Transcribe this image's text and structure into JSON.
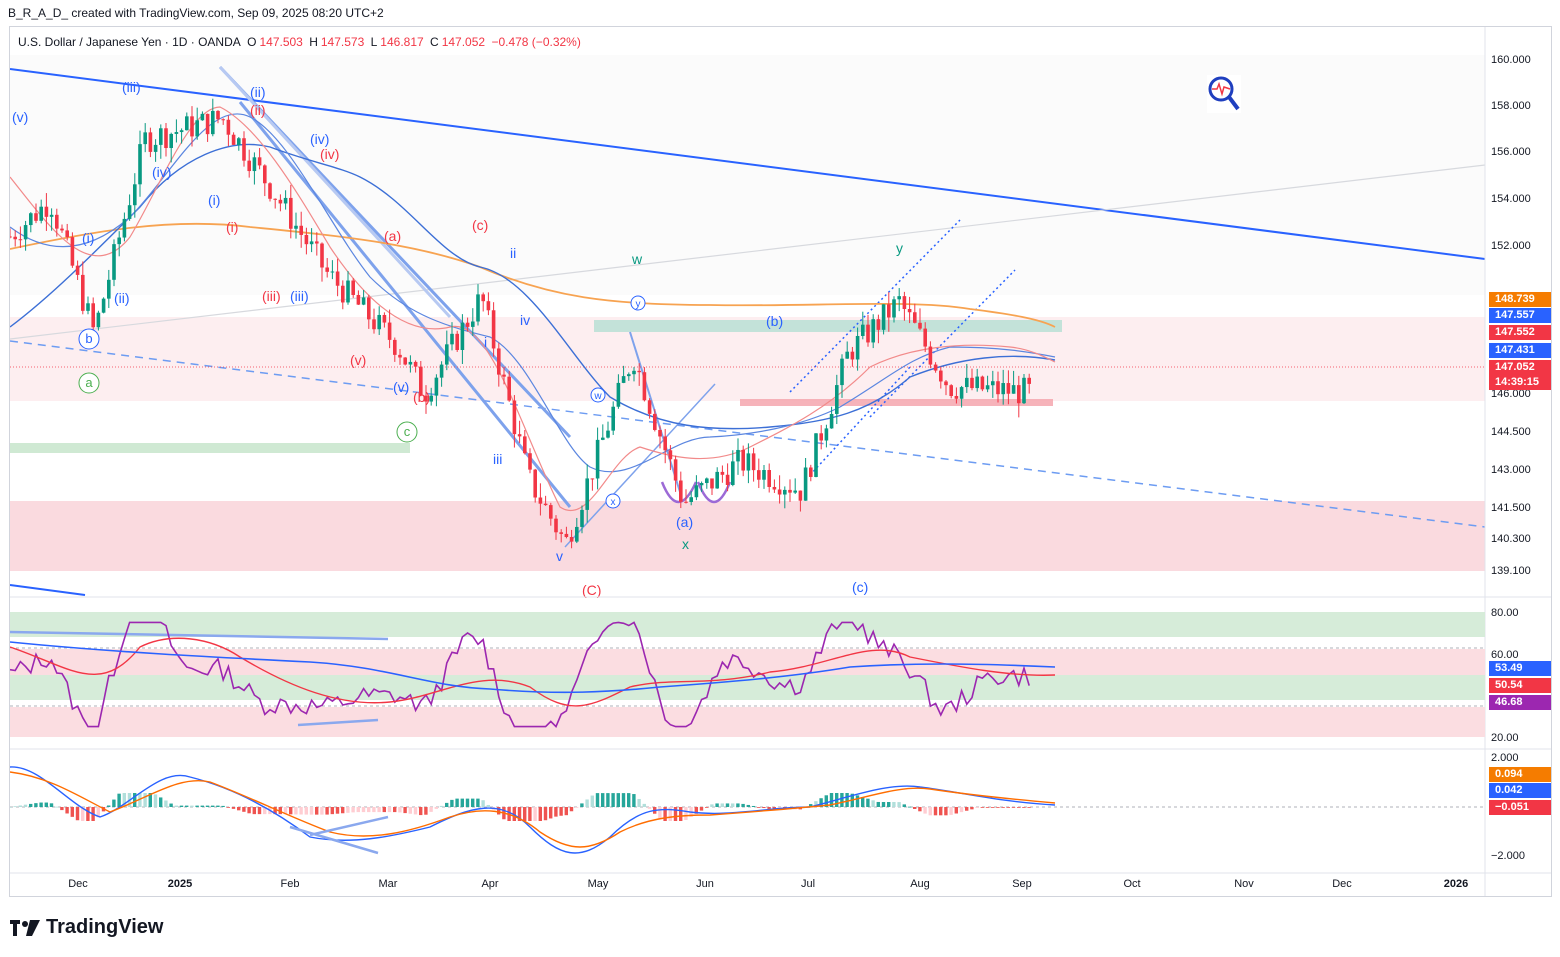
{
  "caption": "B_R_A_D_ created with TradingView.com, Sep 09, 2025 08:20 UTC+2",
  "legend": {
    "symbol": "U.S. Dollar / Japanese Yen · 1D · OANDA",
    "o_label": "O",
    "o": "147.503",
    "h_label": "H",
    "h": "147.573",
    "l_label": "L",
    "l": "146.817",
    "c_label": "C",
    "c": "147.052",
    "change": "−0.478 (−0.32%)"
  },
  "brand": "TradingView",
  "colors": {
    "up": "#089981",
    "down": "#f23645",
    "trendline": "#2962ff",
    "ma_orange": "#f7a351",
    "ma_blue": "#3c6fd6",
    "ma_red": "#f28a8a",
    "rsi": "#9c27b0",
    "macd": "#2962ff",
    "signal": "#ff6d00"
  },
  "price_axis": [
    "160.000",
    "158.000",
    "156.000",
    "154.000",
    "152.000",
    "146.000",
    "144.500",
    "143.000",
    "141.500",
    "140.300",
    "139.100"
  ],
  "price_tags": [
    {
      "value": "148.739",
      "color": "#f57c00"
    },
    {
      "value": "147.557",
      "color": "#2962ff"
    },
    {
      "value": "147.552",
      "color": "#f23645"
    },
    {
      "value": "147.431",
      "color": "#2962ff"
    },
    {
      "value": "147.052",
      "color": "#f23645"
    },
    {
      "value": "14:39:15",
      "color": "#f23645"
    }
  ],
  "rsi_axis": [
    "80.00",
    "60.00",
    "20.00"
  ],
  "rsi_tags": [
    {
      "value": "53.49",
      "color": "#2962ff"
    },
    {
      "value": "50.54",
      "color": "#f23645"
    },
    {
      "value": "46.68",
      "color": "#9c27b0"
    }
  ],
  "macd_axis": [
    "2.000",
    "−2.000"
  ],
  "macd_tags": [
    {
      "value": "0.094",
      "color": "#f57c00"
    },
    {
      "value": "0.042",
      "color": "#2962ff"
    },
    {
      "value": "−0.051",
      "color": "#f23645"
    }
  ],
  "time_axis": [
    "Dec",
    "2025",
    "Feb",
    "Mar",
    "Apr",
    "May",
    "Jun",
    "Jul",
    "Aug",
    "Sep",
    "Oct",
    "Nov",
    "Dec",
    "2026"
  ],
  "wave_labels": [
    {
      "text": "(v)",
      "color": "#2962ff"
    },
    {
      "text": "(iii)",
      "color": "#2962ff"
    },
    {
      "text": "(ii)",
      "color": "#2962ff"
    },
    {
      "text": "(ii)",
      "color": "#f23645"
    },
    {
      "text": "(iv)",
      "color": "#2962ff"
    },
    {
      "text": "(iv)",
      "color": "#f23645"
    },
    {
      "text": "(iv)",
      "color": "#2962ff"
    },
    {
      "text": "(i)",
      "color": "#2962ff"
    },
    {
      "text": "(i)",
      "color": "#f23645"
    },
    {
      "text": "(i)",
      "color": "#2962ff"
    },
    {
      "text": "(ii)",
      "color": "#2962ff"
    },
    {
      "text": "(iii)",
      "color": "#f23645"
    },
    {
      "text": "(iii)",
      "color": "#2962ff"
    },
    {
      "text": "(a)",
      "color": "#f23645"
    },
    {
      "text": "(c)",
      "color": "#f23645"
    },
    {
      "text": "ii",
      "color": "#2962ff"
    },
    {
      "text": "iv",
      "color": "#2962ff"
    },
    {
      "text": "i",
      "color": "#2962ff"
    },
    {
      "text": "(v)",
      "color": "#f23645"
    },
    {
      "text": "(v)",
      "color": "#2962ff"
    },
    {
      "text": "(b)",
      "color": "#f23645"
    },
    {
      "text": "iii",
      "color": "#2962ff"
    },
    {
      "text": "v",
      "color": "#2962ff"
    },
    {
      "text": "(C)",
      "color": "#f23645"
    },
    {
      "text": "w",
      "color": "#089981"
    },
    {
      "text": "(a)",
      "color": "#2962ff"
    },
    {
      "text": "x",
      "color": "#089981"
    },
    {
      "text": "(b)",
      "color": "#2962ff"
    },
    {
      "text": "y",
      "color": "#089981"
    },
    {
      "text": "(c)",
      "color": "#2962ff"
    }
  ],
  "circled_labels": [
    {
      "text": "b",
      "color": "#2962ff"
    },
    {
      "text": "a",
      "color": "#4caf50"
    },
    {
      "text": "c",
      "color": "#4caf50"
    },
    {
      "text": "w",
      "color": "#2962ff"
    },
    {
      "text": "x",
      "color": "#2962ff"
    },
    {
      "text": "y",
      "color": "#2962ff"
    }
  ],
  "chart_data": {
    "type": "candlestick",
    "title": "U.S. Dollar / Japanese Yen · 1D · OANDA",
    "ylim": [
      138.6,
      161.0
    ],
    "x_range": [
      "2024-11-08",
      "2026-01-20"
    ],
    "last_price": 147.052,
    "series": [
      {
        "name": "close_approx",
        "x": [
          "2024-11-08",
          "2024-11-20",
          "2024-12-03",
          "2024-12-18",
          "2025-01-10",
          "2025-01-27",
          "2025-02-10",
          "2025-03-03",
          "2025-03-11",
          "2025-03-28",
          "2025-04-11",
          "2025-04-22",
          "2025-05-12",
          "2025-05-27",
          "2025-06-13",
          "2025-07-01",
          "2025-07-15",
          "2025-07-30",
          "2025-08-14",
          "2025-09-08"
        ],
        "values": [
          153.5,
          155.0,
          149.5,
          157.5,
          158.4,
          155.0,
          152.0,
          149.0,
          147.0,
          151.0,
          143.5,
          140.8,
          148.6,
          142.5,
          144.2,
          143.0,
          148.7,
          150.8,
          147.3,
          147.05
        ]
      }
    ],
    "rsi": {
      "ylim": [
        15,
        85
      ],
      "levels": [
        80,
        60,
        50,
        40,
        20
      ],
      "last": {
        "rsi": 46.68,
        "ma": 50.54,
        "blue": 53.49
      }
    },
    "macd": {
      "ylim": [
        -2.4,
        2.4
      ],
      "last": {
        "signal": 0.094,
        "macd": 0.042,
        "hist": -0.051
      }
    }
  }
}
